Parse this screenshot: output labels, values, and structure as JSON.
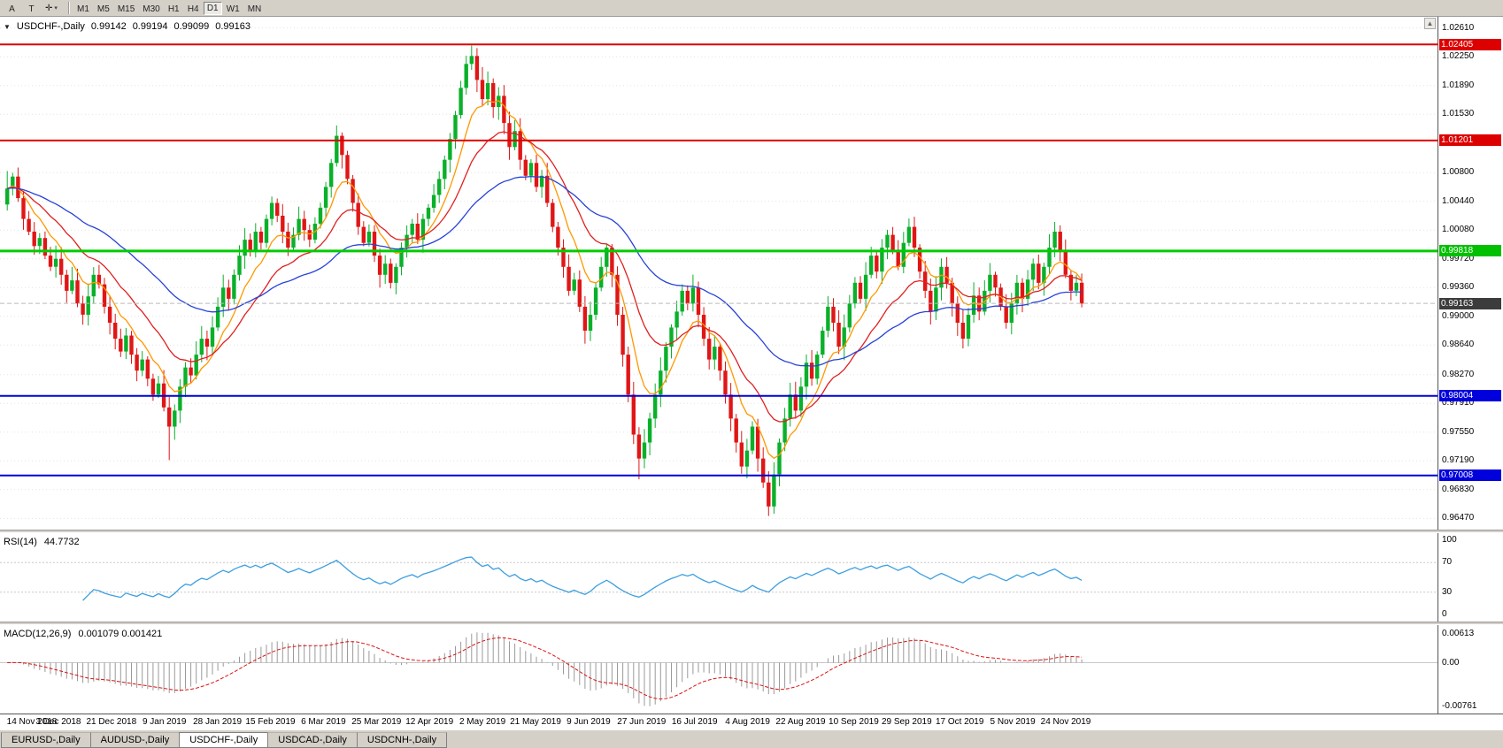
{
  "toolbar": {
    "buttons": [
      {
        "id": "tool-a",
        "label": "A"
      },
      {
        "id": "tool-t",
        "label": "T"
      }
    ],
    "cursor_tool_icon": "✛",
    "dropdown_glyph": "▾",
    "timeframes": [
      "M1",
      "M5",
      "M15",
      "M30",
      "H1",
      "H4",
      "D1",
      "W1",
      "MN"
    ],
    "active_timeframe": "D1"
  },
  "chart": {
    "symbol_label": "USDCHF-,Daily",
    "collapse_icon": "▼",
    "scroll_icon": "▲",
    "ohlc": {
      "open": "0.99142",
      "high": "0.99194",
      "low": "0.99099",
      "close": "0.99163"
    }
  },
  "price_scale": {
    "ticks": [
      "1.02610",
      "1.02250",
      "1.01890",
      "1.01530",
      "1.00800",
      "1.00440",
      "1.00080",
      "0.99720",
      "0.99360",
      "0.99000",
      "0.98640",
      "0.98270",
      "0.97910",
      "0.97550",
      "0.97190",
      "0.96830",
      "0.96470"
    ]
  },
  "rsi": {
    "label": "RSI(14)",
    "value": "44.7732",
    "scale": [
      "100",
      "70",
      "30",
      "0"
    ],
    "levels": [
      70,
      30
    ],
    "color": "#3d9fe0"
  },
  "macd": {
    "label": "MACD(12,26,9)",
    "values": "0.001079 0.001421",
    "scale_top": "0.00613",
    "scale_zero": "0.00",
    "scale_bottom": "-0.00761"
  },
  "bottom_tabs": [
    {
      "label": "EURUSD-,Daily",
      "active": false
    },
    {
      "label": "AUDUSD-,Daily",
      "active": false
    },
    {
      "label": "USDCHF-,Daily",
      "active": true
    },
    {
      "label": "USDCAD-,Daily",
      "active": false
    },
    {
      "label": "USDCNH-,Daily",
      "active": false
    }
  ],
  "chart_data": {
    "type": "candlestick",
    "symbol": "USDCHF",
    "period": "Daily",
    "ohlc_current": {
      "open": 0.99142,
      "high": 0.99194,
      "low": 0.99099,
      "close": 0.99163
    },
    "y_range": [
      0.9633,
      1.0275
    ],
    "x_labels": [
      "14 Nov 2018",
      "3 Dec 2018",
      "21 Dec 2018",
      "9 Jan 2019",
      "28 Jan 2019",
      "15 Feb 2019",
      "6 Mar 2019",
      "25 Mar 2019",
      "12 Apr 2019",
      "2 May 2019",
      "21 May 2019",
      "9 Jun 2019",
      "27 Jun 2019",
      "16 Jul 2019",
      "4 Aug 2019",
      "22 Aug 2019",
      "10 Sep 2019",
      "29 Sep 2019",
      "17 Oct 2019",
      "5 Nov 2019",
      "24 Nov 2019"
    ],
    "first_open": 1.004,
    "closes": [
      1.006,
      1.0075,
      1.0048,
      1.0022,
      1.0006,
      0.9988,
      0.9998,
      0.9976,
      0.9962,
      0.9972,
      0.9952,
      0.9932,
      0.9945,
      0.9916,
      0.9902,
      0.9925,
      0.9952,
      0.994,
      0.9912,
      0.9892,
      0.9872,
      0.9856,
      0.9876,
      0.9852,
      0.9832,
      0.9846,
      0.9822,
      0.9802,
      0.9816,
      0.9786,
      0.9762,
      0.9782,
      0.9812,
      0.9836,
      0.9826,
      0.9852,
      0.9872,
      0.9862,
      0.9886,
      0.9912,
      0.9936,
      0.9922,
      0.9952,
      0.9976,
      0.9996,
      0.9982,
      1.0006,
      0.9992,
      1.0022,
      1.0042,
      1.0026,
      1.0006,
      0.9986,
      1.0002,
      1.0022,
      1.0008,
      0.9996,
      1.0016,
      1.0036,
      1.0062,
      1.0092,
      1.0126,
      1.0102,
      1.0072,
      1.0042,
      1.0012,
      0.9992,
      1.0006,
      0.9976,
      0.9952,
      0.9966,
      0.9942,
      0.9962,
      0.9986,
      1.0002,
      1.0016,
      0.9996,
      1.0022,
      1.0036,
      1.0052,
      1.0072,
      1.0096,
      1.0122,
      1.0152,
      1.0186,
      1.0216,
      1.0226,
      1.0196,
      1.0172,
      1.0192,
      1.0162,
      1.0176,
      1.0142,
      1.0112,
      1.0132,
      1.0096,
      1.0076,
      1.0092,
      1.0062,
      1.0076,
      1.0042,
      1.0012,
      0.9986,
      0.9962,
      0.9932,
      0.9946,
      0.9912,
      0.9882,
      0.9902,
      0.9936,
      0.9962,
      0.9986,
      0.9952,
      0.9902,
      0.9852,
      0.9802,
      0.9752,
      0.9722,
      0.9742,
      0.9772,
      0.9802,
      0.9832,
      0.9862,
      0.9886,
      0.9906,
      0.9932,
      0.9916,
      0.9936,
      0.9902,
      0.9872,
      0.9846,
      0.9862,
      0.9832,
      0.9802,
      0.9772,
      0.9742,
      0.9712,
      0.9732,
      0.9762,
      0.9722,
      0.9692,
      0.9662,
      0.9702,
      0.9742,
      0.9772,
      0.9802,
      0.9782,
      0.9812,
      0.9842,
      0.9822,
      0.9852,
      0.9882,
      0.9912,
      0.9892,
      0.9862,
      0.9886,
      0.9916,
      0.9942,
      0.9922,
      0.9952,
      0.9976,
      0.9956,
      0.9986,
      1.0002,
      0.9982,
      0.9962,
      0.9992,
      1.0012,
      0.9986,
      0.9956,
      0.9932,
      0.9906,
      0.9936,
      0.9962,
      0.9942,
      0.9916,
      0.9892,
      0.9872,
      0.9902,
      0.9926,
      0.9906,
      0.9932,
      0.9952,
      0.9936,
      0.9912,
      0.9892,
      0.9916,
      0.9942,
      0.9922,
      0.9946,
      0.9966,
      0.9942,
      0.9962,
      0.9986,
      1.0006,
      0.9982,
      0.9952,
      0.9932,
      0.9942,
      0.9916
    ],
    "wick_overrides": {
      "0": {
        "high": 1.0082
      },
      "30": {
        "low": 0.972
      },
      "61": {
        "high": 1.0139
      },
      "86": {
        "high": 1.0239
      },
      "117": {
        "low": 0.9696
      },
      "141": {
        "low": 0.965
      }
    },
    "levels": [
      {
        "value": "1.02405",
        "price": 1.02405,
        "color": "#dd0000",
        "line_color": "#dd0000",
        "width": 2,
        "dashed": false
      },
      {
        "value": "1.01201",
        "price": 1.01201,
        "color": "#dd0000",
        "line_color": "#dd0000",
        "width": 2,
        "dashed": false
      },
      {
        "value": "0.99818",
        "price": 0.99818,
        "color": "#00c000",
        "line_color": "#00cc00",
        "width": 3,
        "dashed": false
      },
      {
        "value": "0.99163",
        "price": 0.99163,
        "color": "#3c3c3c",
        "line_color": "#bbbbbb",
        "width": 1,
        "dashed": true
      },
      {
        "value": "0.98004",
        "price": 0.98004,
        "color": "#0000dd",
        "line_color": "#0000dd",
        "width": 2,
        "dashed": false
      },
      {
        "value": "0.97008",
        "price": 0.97008,
        "color": "#0000dd",
        "line_color": "#0000dd",
        "width": 2,
        "dashed": false
      }
    ],
    "candle_colors": {
      "up": "#0ab02a",
      "down": "#e01616"
    },
    "moving_averages": [
      {
        "name": "fast",
        "type": "ema",
        "period": 8,
        "color": "#ff9800"
      },
      {
        "name": "mid",
        "type": "ema",
        "period": 18,
        "color": "#e02020"
      },
      {
        "name": "slow",
        "type": "ema",
        "period": 45,
        "color": "#2742d8"
      }
    ],
    "indicators": {
      "rsi": {
        "period": 14,
        "current": 44.7732
      },
      "macd": {
        "fast": 12,
        "slow": 26,
        "signal": 9,
        "current_main": 0.001079,
        "current_signal": 0.001421
      }
    }
  }
}
